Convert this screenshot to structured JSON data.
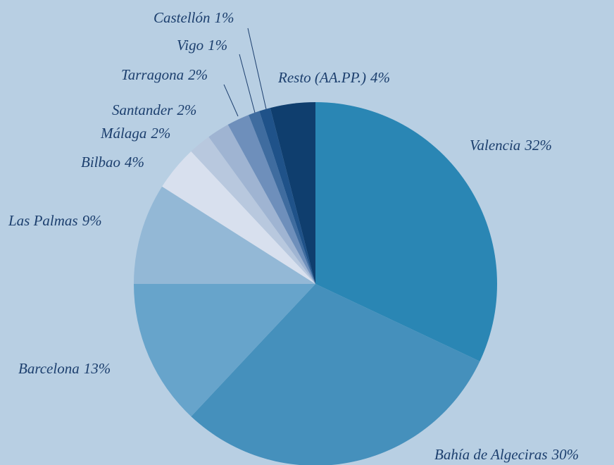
{
  "chart_data": {
    "type": "pie",
    "categories": [
      "Valencia",
      "Bahía de Algeciras",
      "Barcelona",
      "Las Palmas",
      "Bilbao",
      "Málaga",
      "Santander",
      "Tarragona",
      "Vigo",
      "Castellón",
      "Resto (AA.PP.)"
    ],
    "values": [
      32,
      30,
      13,
      9,
      4,
      2,
      2,
      2,
      1,
      1,
      4
    ],
    "value_labels": [
      "32%",
      "30%",
      "13%",
      "9%",
      "4%",
      "2%",
      "2%",
      "2%",
      "1%",
      "1%",
      "4%"
    ],
    "colors": [
      "#2a86b4",
      "#4590bc",
      "#67a4cb",
      "#93b8d6",
      "#d8e0ee",
      "#b8c8de",
      "#9fb4d2",
      "#6e8fbb",
      "#3f6c9f",
      "#1f5289",
      "#0f3e6e"
    ]
  }
}
